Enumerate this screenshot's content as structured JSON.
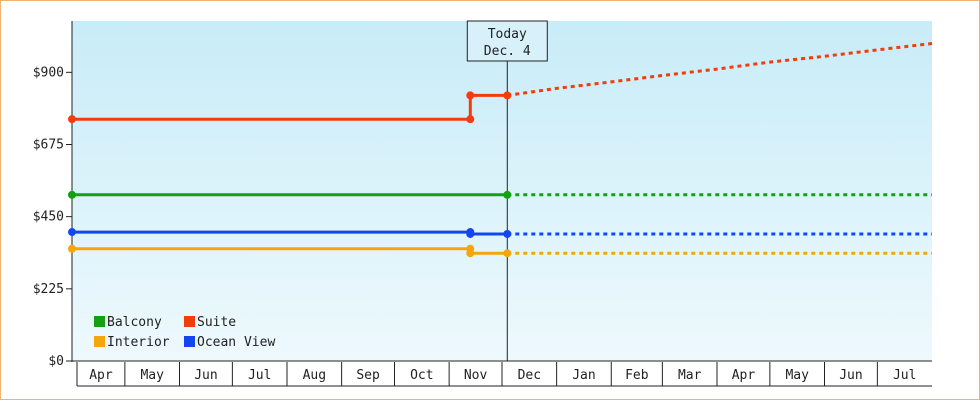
{
  "chart_data": {
    "type": "line",
    "title": "",
    "xlabel": "",
    "ylabel": "",
    "y_ticks": [
      "$0",
      "$225",
      "$450",
      "$675",
      "$900"
    ],
    "y_tick_values": [
      0,
      225,
      450,
      675,
      900
    ],
    "ylim": [
      0,
      1060
    ],
    "x_month_labels": [
      "Apr",
      "May",
      "Jun",
      "Jul",
      "Aug",
      "Sep",
      "Oct",
      "Nov",
      "Dec",
      "Jan",
      "Feb",
      "Mar",
      "Apr",
      "May",
      "Jun",
      "Jul"
    ],
    "xlim": [
      "2023-04-01",
      "2024-08-01"
    ],
    "today": {
      "line1": "Today",
      "line2": "Dec. 4",
      "date": "2023-12-04"
    },
    "legend_position": "bottom-left",
    "grid": false,
    "background_gradient": [
      "#c8ecf8",
      "#eef9fd"
    ],
    "series": [
      {
        "name": "Balcony",
        "color": "#13a013",
        "history": [
          [
            "2023-04-01",
            518
          ],
          [
            "2023-12-04",
            518
          ]
        ],
        "forecast": [
          [
            "2023-12-04",
            518
          ],
          [
            "2024-08-01",
            518
          ]
        ]
      },
      {
        "name": "Suite",
        "color": "#f23c0a",
        "history": [
          [
            "2023-04-01",
            754
          ],
          [
            "2023-11-13",
            754
          ],
          [
            "2023-11-13",
            828
          ],
          [
            "2023-12-04",
            828
          ]
        ],
        "forecast": [
          [
            "2023-12-04",
            828
          ],
          [
            "2024-01-01",
            850
          ],
          [
            "2024-02-01",
            870
          ],
          [
            "2024-03-01",
            890
          ],
          [
            "2024-04-01",
            910
          ],
          [
            "2024-05-01",
            932
          ],
          [
            "2024-06-01",
            950
          ],
          [
            "2024-07-01",
            970
          ],
          [
            "2024-08-01",
            990
          ]
        ]
      },
      {
        "name": "Interior",
        "color": "#f5a60c",
        "history": [
          [
            "2023-04-01",
            350
          ],
          [
            "2023-11-13",
            350
          ],
          [
            "2023-11-13",
            336
          ],
          [
            "2023-12-04",
            336
          ]
        ],
        "forecast": [
          [
            "2023-12-04",
            336
          ],
          [
            "2024-08-01",
            336
          ]
        ]
      },
      {
        "name": "Ocean View",
        "color": "#1446f0",
        "history": [
          [
            "2023-04-01",
            402
          ],
          [
            "2023-11-13",
            402
          ],
          [
            "2023-11-13",
            396
          ],
          [
            "2023-12-04",
            396
          ]
        ],
        "forecast": [
          [
            "2023-12-04",
            396
          ],
          [
            "2024-08-01",
            396
          ]
        ]
      }
    ]
  }
}
